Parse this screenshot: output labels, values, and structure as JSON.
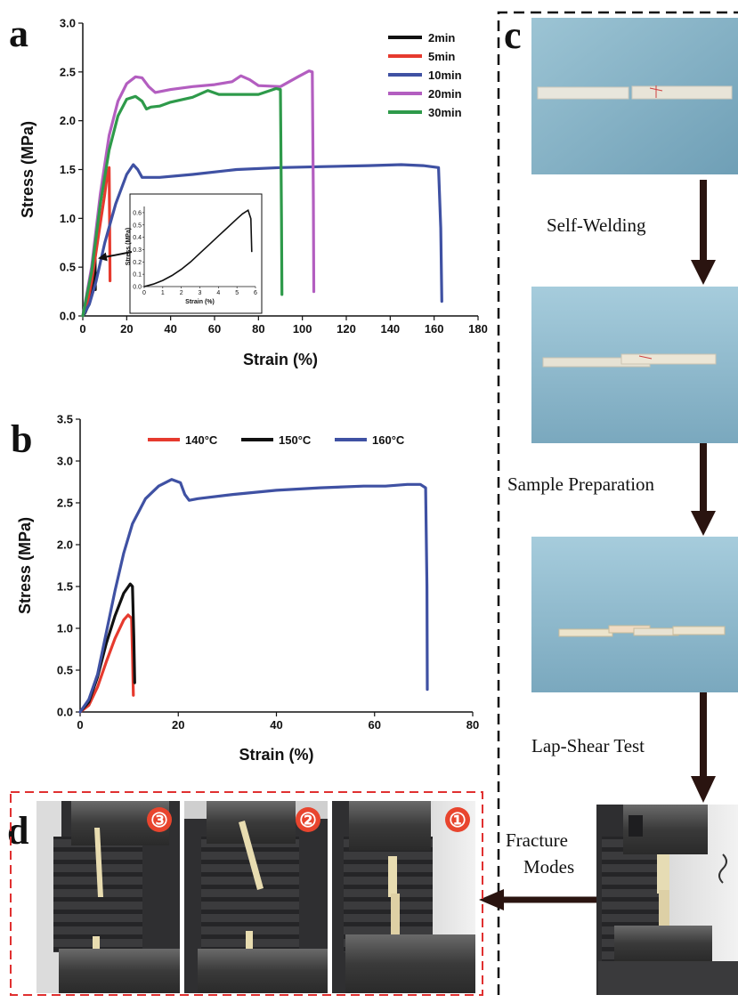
{
  "panels": {
    "a": "a",
    "b": "b",
    "c": "c",
    "d": "d"
  },
  "colors": {
    "black": "#111111",
    "red": "#e63a2e",
    "blue": "#3f51a3",
    "purple": "#b35ec0",
    "green": "#2e9a4a",
    "arrow": "#3a1f16",
    "frame_red": "#e03030"
  },
  "chart_data": [
    {
      "id": "a",
      "type": "line",
      "title": "",
      "xlabel": "Strain (%)",
      "ylabel": "Stress (MPa)",
      "xlim": [
        0,
        180
      ],
      "ylim": [
        0,
        3.0
      ],
      "xticks": [
        "0",
        "20",
        "40",
        "60",
        "80",
        "100",
        "120",
        "140",
        "160",
        "180"
      ],
      "yticks": [
        "0.0",
        "0.5",
        "1.0",
        "1.5",
        "2.0",
        "2.5",
        "3.0"
      ],
      "grid": false,
      "legend_position": "top-right",
      "series": [
        {
          "name": "2min",
          "color": "#111111",
          "x": [
            0,
            1,
            2,
            3,
            4,
            5,
            5.6,
            5.7
          ],
          "y": [
            0,
            0.03,
            0.08,
            0.16,
            0.27,
            0.42,
            0.6,
            0.27
          ]
        },
        {
          "name": "5min",
          "color": "#e63a2e",
          "x": [
            0,
            2,
            4,
            6,
            8,
            10,
            11,
            12,
            12.2,
            12.4
          ],
          "y": [
            0,
            0.12,
            0.35,
            0.65,
            0.95,
            1.25,
            1.42,
            1.52,
            1.0,
            0.36
          ]
        },
        {
          "name": "10min",
          "color": "#3f51a3",
          "x": [
            0,
            3,
            6,
            10,
            15,
            20,
            23,
            25,
            27,
            35,
            50,
            70,
            90,
            110,
            130,
            145,
            155,
            162,
            163,
            163.5
          ],
          "y": [
            0,
            0.12,
            0.35,
            0.75,
            1.15,
            1.45,
            1.55,
            1.5,
            1.42,
            1.42,
            1.45,
            1.5,
            1.52,
            1.53,
            1.54,
            1.55,
            1.54,
            1.52,
            0.9,
            0.15
          ]
        },
        {
          "name": "20min",
          "color": "#b35ec0",
          "x": [
            0,
            4,
            8,
            12,
            16,
            20,
            24,
            27,
            30,
            33,
            40,
            50,
            60,
            68,
            72,
            76,
            80,
            90,
            98,
            103,
            104.5,
            105,
            105.2
          ],
          "y": [
            0,
            0.5,
            1.25,
            1.85,
            2.2,
            2.38,
            2.45,
            2.44,
            2.35,
            2.29,
            2.32,
            2.35,
            2.37,
            2.4,
            2.46,
            2.42,
            2.36,
            2.35,
            2.45,
            2.51,
            2.5,
            1.2,
            0.25
          ]
        },
        {
          "name": "30min",
          "color": "#2e9a4a",
          "x": [
            0,
            4,
            8,
            12,
            16,
            20,
            24,
            27,
            29,
            31,
            35,
            40,
            50,
            57,
            62,
            70,
            80,
            88,
            90,
            90.5,
            90.7
          ],
          "y": [
            0,
            0.45,
            1.15,
            1.7,
            2.05,
            2.22,
            2.25,
            2.2,
            2.12,
            2.14,
            2.15,
            2.19,
            2.24,
            2.31,
            2.27,
            2.27,
            2.27,
            2.33,
            2.32,
            1.0,
            0.22
          ]
        }
      ],
      "inset": {
        "type": "line",
        "xlabel": "Strain (%)",
        "ylabel": "Stress (MPa)",
        "xlim": [
          0,
          6
        ],
        "ylim": [
          0,
          0.65
        ],
        "xticks": [
          "0",
          "1",
          "2",
          "3",
          "4",
          "5",
          "6"
        ],
        "yticks": [
          "0.0",
          "0.1",
          "0.2",
          "0.3",
          "0.4",
          "0.5",
          "0.6"
        ],
        "series": [
          {
            "name": "2min",
            "color": "#111111",
            "x": [
              0,
              0.5,
              1,
              1.5,
              2,
              2.5,
              3,
              3.5,
              4,
              4.5,
              5,
              5.3,
              5.6,
              5.75,
              5.8
            ],
            "y": [
              0,
              0.02,
              0.05,
              0.09,
              0.14,
              0.2,
              0.27,
              0.34,
              0.41,
              0.48,
              0.55,
              0.59,
              0.62,
              0.55,
              0.28
            ]
          }
        ]
      }
    },
    {
      "id": "b",
      "type": "line",
      "title": "",
      "xlabel": "Strain (%)",
      "ylabel": "Stress (MPa)",
      "xlim": [
        0,
        90
      ],
      "ylim": [
        0,
        3.5
      ],
      "xticks": [
        "0",
        "20",
        "40",
        "60",
        "80"
      ],
      "yticks": [
        "0.0",
        "0.5",
        "1.0",
        "1.5",
        "2.0",
        "2.5",
        "3.0",
        "3.5"
      ],
      "grid": false,
      "legend_position": "top",
      "series": [
        {
          "name": "140°C",
          "color": "#e63a2e",
          "x": [
            0,
            2,
            4,
            6,
            8,
            10,
            11,
            11.8,
            12,
            12.2
          ],
          "y": [
            0,
            0.08,
            0.3,
            0.6,
            0.88,
            1.1,
            1.16,
            1.12,
            0.7,
            0.2
          ]
        },
        {
          "name": "150°C",
          "color": "#111111",
          "x": [
            0,
            2,
            4,
            6,
            8,
            10,
            11.5,
            12,
            12.3,
            12.5
          ],
          "y": [
            0,
            0.12,
            0.42,
            0.82,
            1.15,
            1.42,
            1.53,
            1.5,
            0.9,
            0.35
          ]
        },
        {
          "name": "160°C",
          "color": "#3f51a3",
          "x": [
            0,
            2,
            4,
            6,
            8,
            10,
            12,
            15,
            18,
            21,
            23,
            24,
            25,
            27,
            35,
            45,
            55,
            65,
            70,
            75,
            78,
            79.2,
            79.5,
            79.6
          ],
          "y": [
            0,
            0.15,
            0.45,
            0.95,
            1.45,
            1.9,
            2.25,
            2.55,
            2.7,
            2.78,
            2.74,
            2.6,
            2.53,
            2.55,
            2.6,
            2.65,
            2.68,
            2.7,
            2.7,
            2.72,
            2.72,
            2.68,
            1.5,
            0.27
          ]
        }
      ]
    }
  ],
  "process": {
    "steps": [
      "Self-Welding",
      "Sample Preparation",
      "Lap-Shear Test"
    ],
    "fracture_label_line1": "Fracture",
    "fracture_label_line2": "Modes",
    "modes": [
      "③",
      "②",
      "①"
    ]
  }
}
